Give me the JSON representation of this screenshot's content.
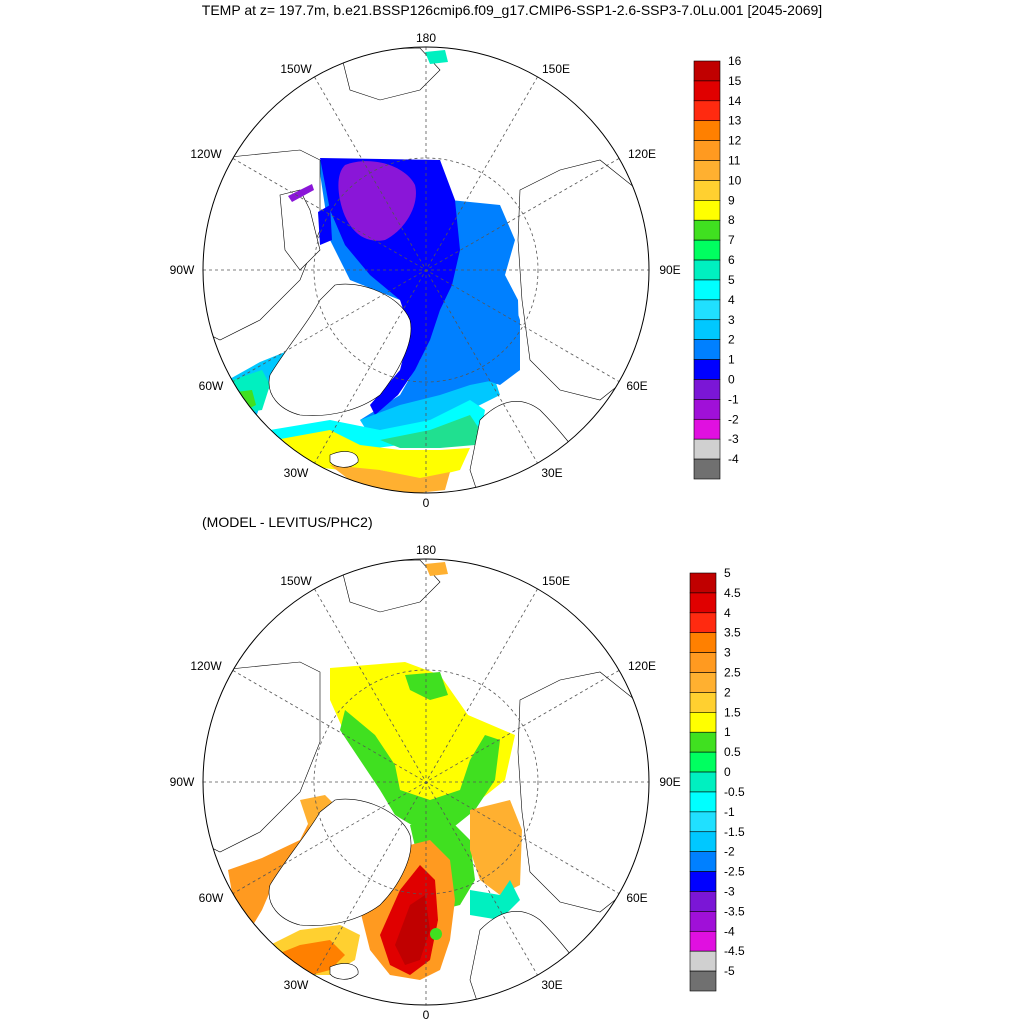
{
  "title": "TEMP at z= 197.7m, b.e21.BSSP126cmip6.f09_g17.CMIP6-SSP1-2.6-SSP3-7.0Lu.001 [2045-2069]",
  "subtitle": "(MODEL - LEVITUS/PHC2)",
  "longitude_labels": {
    "top": "180",
    "bottom": "0",
    "upper_left": "150W",
    "upper_right": "150E",
    "left_high": "120W",
    "right_high": "120E",
    "left": "90W",
    "right": "90E",
    "left_low": "60W",
    "right_low": "60E",
    "lower_left": "30W",
    "lower_right": "30E"
  },
  "colors": {
    "land_fill": "#ffffff",
    "coast_line": "#000000",
    "grid_line": "#555555"
  },
  "panels": [
    {
      "name": "model-temperature",
      "colorbar": {
        "labels": [
          "16",
          "15",
          "14",
          "13",
          "12",
          "11",
          "10",
          "9",
          "8",
          "7",
          "6",
          "5",
          "4",
          "3",
          "2",
          "1",
          "0",
          "-1",
          "-2",
          "-3",
          "-4"
        ],
        "colors": [
          "#c00000",
          "#e00000",
          "#ff2a10",
          "#ff8000",
          "#ff9a20",
          "#ffb030",
          "#ffd030",
          "#ffff00",
          "#40e020",
          "#00ff60",
          "#00f0c0",
          "#00ffff",
          "#20e0ff",
          "#00c8ff",
          "#0080ff",
          "#0000ff",
          "#7b16d6",
          "#a010d8",
          "#e010e0",
          "#d0d0d0",
          "#707070"
        ]
      }
    },
    {
      "name": "model-minus-obs-difference",
      "colorbar": {
        "labels": [
          "5",
          "4.5",
          "4",
          "3.5",
          "3",
          "2.5",
          "2",
          "1.5",
          "1",
          "0.5",
          "0",
          "-0.5",
          "-1",
          "-1.5",
          "-2",
          "-2.5",
          "-3",
          "-3.5",
          "-4",
          "-4.5",
          "-5"
        ],
        "colors": [
          "#c00000",
          "#e00000",
          "#ff2a10",
          "#ff8000",
          "#ff9a20",
          "#ffb030",
          "#ffd030",
          "#ffff00",
          "#40e020",
          "#00ff60",
          "#00f0c0",
          "#00ffff",
          "#20e0ff",
          "#00c8ff",
          "#0080ff",
          "#0000ff",
          "#7b16d6",
          "#a010d8",
          "#e010e0",
          "#d0d0d0",
          "#707070"
        ]
      }
    }
  ]
}
